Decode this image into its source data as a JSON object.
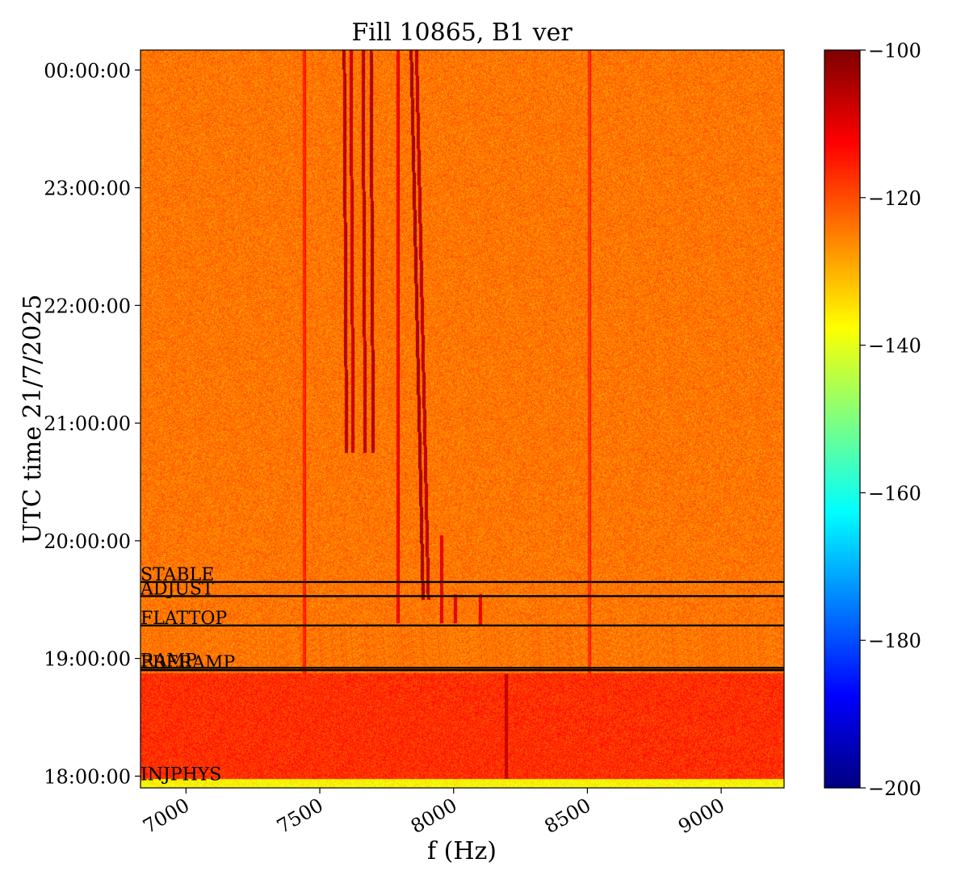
{
  "chart_data": {
    "type": "heatmap",
    "title": "Fill 10865, B1 ver",
    "xlabel": "f (Hz)",
    "ylabel": "UTC time 21/7/2025",
    "xlim": [
      6830,
      9235
    ],
    "ylim_hours": [
      17.9,
      24.17
    ],
    "x_ticks": [
      {
        "value": 7000,
        "label": "7000"
      },
      {
        "value": 7500,
        "label": "7500"
      },
      {
        "value": 8000,
        "label": "8000"
      },
      {
        "value": 8500,
        "label": "8500"
      },
      {
        "value": 9000,
        "label": "9000"
      }
    ],
    "y_ticks": [
      {
        "value": 18,
        "label": "18:00:00"
      },
      {
        "value": 19,
        "label": "19:00:00"
      },
      {
        "value": 20,
        "label": "20:00:00"
      },
      {
        "value": 21,
        "label": "21:00:00"
      },
      {
        "value": 22,
        "label": "22:00:00"
      },
      {
        "value": 23,
        "label": "23:00:00"
      },
      {
        "value": 24,
        "label": "00:00:00"
      }
    ],
    "colorbar": {
      "colormap": "jet",
      "range": [
        -200,
        -100
      ],
      "ticks": [
        {
          "value": -100,
          "label": "−100"
        },
        {
          "value": -120,
          "label": "−120"
        },
        {
          "value": -140,
          "label": "−140"
        },
        {
          "value": -160,
          "label": "−160"
        },
        {
          "value": -180,
          "label": "−180"
        },
        {
          "value": -200,
          "label": "−200"
        }
      ]
    },
    "background_level_db": -124,
    "event_lines": [
      {
        "label": "STABLE",
        "time": 19.65
      },
      {
        "label": "ADJUST",
        "time": 19.53
      },
      {
        "label": "FLATTOP",
        "time": 19.28
      },
      {
        "label": "RAMP",
        "time": 18.92
      },
      {
        "label": "PRERAMP",
        "time": 18.9
      },
      {
        "label": "INJPHYS",
        "time": 17.95
      }
    ],
    "lines": [
      {
        "f": 7440,
        "t_start": 18.87,
        "t_end": 24.17,
        "level_db": -118
      },
      {
        "f": 7590,
        "t_start": 20.75,
        "t_end": 24.17,
        "level_db": -108,
        "drift_hz": 15
      },
      {
        "f": 7615,
        "t_start": 20.75,
        "t_end": 24.17,
        "level_db": -110,
        "drift_hz": 15
      },
      {
        "f": 7660,
        "t_start": 20.75,
        "t_end": 24.17,
        "level_db": -109,
        "drift_hz": 15
      },
      {
        "f": 7690,
        "t_start": 20.75,
        "t_end": 24.17,
        "level_db": -108,
        "drift_hz": 15
      },
      {
        "f": 7790,
        "t_start": 19.3,
        "t_end": 24.17,
        "level_db": -114
      },
      {
        "f": 7840,
        "t_start": 19.5,
        "t_end": 24.17,
        "level_db": -107,
        "drift_hz": 60
      },
      {
        "f": 7860,
        "t_start": 19.5,
        "t_end": 24.17,
        "level_db": -109,
        "drift_hz": 60
      },
      {
        "f": 7955,
        "t_start": 19.3,
        "t_end": 20.05,
        "level_db": -113
      },
      {
        "f": 8005,
        "t_start": 19.3,
        "t_end": 19.55,
        "level_db": -112
      },
      {
        "f": 8100,
        "t_start": 19.28,
        "t_end": 19.55,
        "level_db": -113
      },
      {
        "f": 8195,
        "t_start": 17.98,
        "t_end": 18.87,
        "level_db": -110
      },
      {
        "f": 8505,
        "t_start": 18.87,
        "t_end": 24.17,
        "level_db": -119
      }
    ],
    "regions": [
      {
        "f_start": 6830,
        "f_end": 9235,
        "t_start": 17.98,
        "t_end": 18.88,
        "level_db": -117
      },
      {
        "f_start": 6830,
        "f_end": 9235,
        "t_start": 17.9,
        "t_end": 17.98,
        "level_db": -137
      }
    ]
  }
}
